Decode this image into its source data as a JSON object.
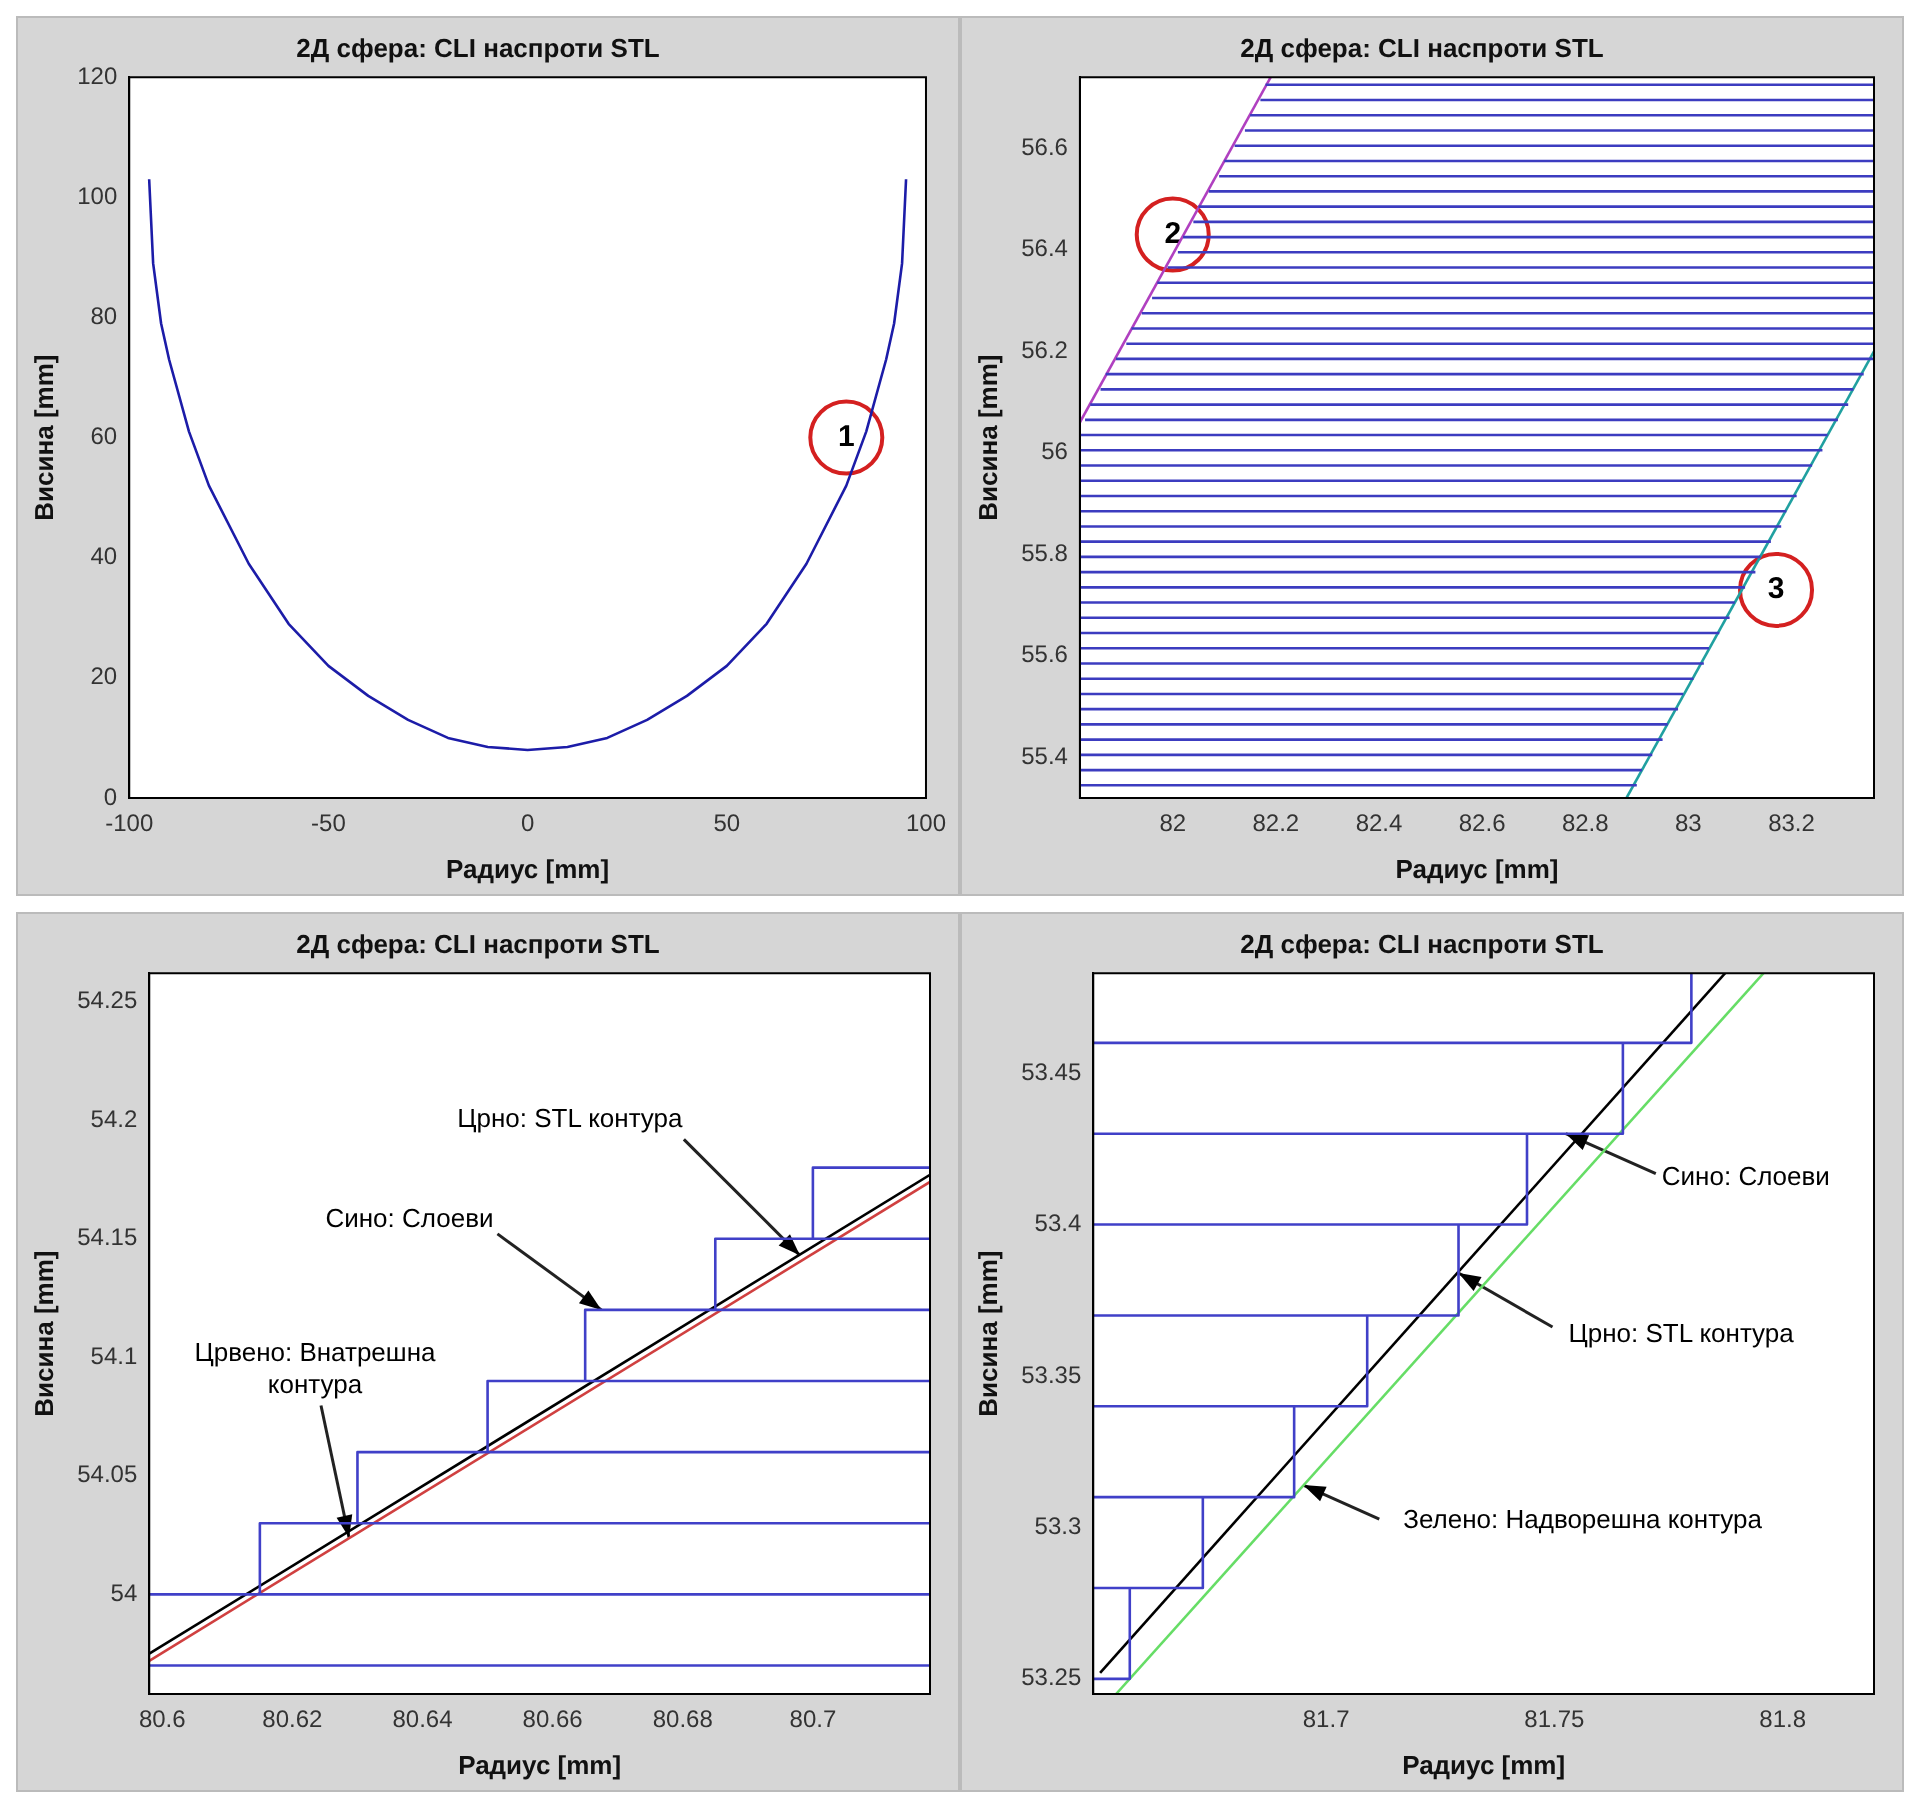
{
  "chart_data": [
    {
      "type": "line",
      "title": "2Д сфера: CLI наспроти STL",
      "xlabel": "Радиус [mm]",
      "ylabel": "Висина [mm]",
      "marker": "none",
      "xlim": [
        -100,
        100
      ],
      "ylim": [
        0,
        120
      ],
      "xticks": [
        -100,
        -50,
        0,
        50,
        100
      ],
      "yticks": [
        0,
        20,
        40,
        60,
        80,
        100,
        120
      ],
      "series": [
        {
          "color": "#1c1ca8",
          "x": [
            -95,
            -94,
            -92,
            -90,
            -85,
            -80,
            -70,
            -60,
            -50,
            -40,
            -30,
            -20,
            -10,
            0,
            10,
            20,
            30,
            40,
            50,
            60,
            70,
            80,
            85,
            90,
            92,
            94,
            95
          ],
          "values": [
            103,
            89,
            79,
            73,
            61,
            52,
            39,
            29,
            22,
            17,
            13,
            10,
            8.5,
            8,
            8.5,
            10,
            13,
            17,
            22,
            29,
            39,
            52,
            61,
            73,
            79,
            89,
            103
          ]
        }
      ],
      "annotations": [
        {
          "text": "1",
          "x": 80,
          "y": 60
        }
      ]
    },
    {
      "type": "line",
      "title": "2Д сфера: CLI наспроти STL",
      "xlabel": "Радиус [mm]",
      "ylabel": "Висина [mm]",
      "marker": "none",
      "xlim": [
        81.82,
        83.36
      ],
      "ylim": [
        55.32,
        56.74
      ],
      "xticks": [
        82,
        82.2,
        82.4,
        82.6,
        82.8,
        83,
        83.2
      ],
      "yticks": [
        55.4,
        55.6,
        55.8,
        56,
        56.2,
        56.4,
        56.6
      ],
      "series": [
        {
          "color": "#3c3cc0",
          "x": [
            81.82,
            82.9
          ],
          "values": [
            55.345,
            55.345
          ]
        },
        {
          "color": "#3c3cc0",
          "x": [
            81.82,
            82.91
          ],
          "values": [
            55.375,
            55.375
          ]
        },
        {
          "color": "#3c3cc0",
          "x": [
            81.82,
            82.93
          ],
          "values": [
            55.405,
            55.405
          ]
        },
        {
          "color": "#3c3cc0",
          "x": [
            81.82,
            82.95
          ],
          "values": [
            55.435,
            55.435
          ]
        },
        {
          "color": "#3c3cc0",
          "x": [
            81.82,
            82.96
          ],
          "values": [
            55.465,
            55.465
          ]
        },
        {
          "color": "#3c3cc0",
          "x": [
            81.82,
            82.98
          ],
          "values": [
            55.495,
            55.495
          ]
        },
        {
          "color": "#3c3cc0",
          "x": [
            81.82,
            82.99
          ],
          "values": [
            55.525,
            55.525
          ]
        },
        {
          "color": "#3c3cc0",
          "x": [
            81.82,
            83.01
          ],
          "values": [
            55.555,
            55.555
          ]
        },
        {
          "color": "#3c3cc0",
          "x": [
            81.82,
            83.03
          ],
          "values": [
            55.585,
            55.585
          ]
        },
        {
          "color": "#3c3cc0",
          "x": [
            81.82,
            83.04
          ],
          "values": [
            55.615,
            55.615
          ]
        },
        {
          "color": "#3c3cc0",
          "x": [
            81.82,
            83.06
          ],
          "values": [
            55.645,
            55.645
          ]
        },
        {
          "color": "#3c3cc0",
          "x": [
            81.82,
            83.08
          ],
          "values": [
            55.675,
            55.675
          ]
        },
        {
          "color": "#3c3cc0",
          "x": [
            81.82,
            83.09
          ],
          "values": [
            55.705,
            55.705
          ]
        },
        {
          "color": "#3c3cc0",
          "x": [
            81.82,
            83.11
          ],
          "values": [
            55.735,
            55.735
          ]
        },
        {
          "color": "#3c3cc0",
          "x": [
            81.82,
            83.13
          ],
          "values": [
            55.765,
            55.765
          ]
        },
        {
          "color": "#3c3cc0",
          "x": [
            81.82,
            83.14
          ],
          "values": [
            55.795,
            55.795
          ]
        },
        {
          "color": "#3c3cc0",
          "x": [
            81.82,
            83.16
          ],
          "values": [
            55.825,
            55.825
          ]
        },
        {
          "color": "#3c3cc0",
          "x": [
            81.82,
            83.18
          ],
          "values": [
            55.855,
            55.855
          ]
        },
        {
          "color": "#3c3cc0",
          "x": [
            81.82,
            83.19
          ],
          "values": [
            55.885,
            55.885
          ]
        },
        {
          "color": "#3c3cc0",
          "x": [
            81.82,
            83.21
          ],
          "values": [
            55.915,
            55.915
          ]
        },
        {
          "color": "#3c3cc0",
          "x": [
            81.82,
            83.22
          ],
          "values": [
            55.945,
            55.945
          ]
        },
        {
          "color": "#3c3cc0",
          "x": [
            81.82,
            83.24
          ],
          "values": [
            55.975,
            55.975
          ]
        },
        {
          "color": "#3c3cc0",
          "x": [
            81.82,
            83.26
          ],
          "values": [
            56.005,
            56.005
          ]
        },
        {
          "color": "#3c3cc0",
          "x": [
            81.82,
            83.27
          ],
          "values": [
            56.035,
            56.035
          ]
        },
        {
          "color": "#3c3cc0",
          "x": [
            81.83,
            83.29
          ],
          "values": [
            56.065,
            56.065
          ]
        },
        {
          "color": "#3c3cc0",
          "x": [
            81.84,
            83.31
          ],
          "values": [
            56.095,
            56.095
          ]
        },
        {
          "color": "#3c3cc0",
          "x": [
            81.86,
            83.32
          ],
          "values": [
            56.125,
            56.125
          ]
        },
        {
          "color": "#3c3cc0",
          "x": [
            81.87,
            83.34
          ],
          "values": [
            56.155,
            56.155
          ]
        },
        {
          "color": "#3c3cc0",
          "x": [
            81.89,
            83.36
          ],
          "values": [
            56.185,
            56.185
          ]
        },
        {
          "color": "#3c3cc0",
          "x": [
            81.91,
            83.36
          ],
          "values": [
            56.215,
            56.215
          ]
        },
        {
          "color": "#3c3cc0",
          "x": [
            81.92,
            83.36
          ],
          "values": [
            56.245,
            56.245
          ]
        },
        {
          "color": "#3c3cc0",
          "x": [
            81.94,
            83.36
          ],
          "values": [
            56.275,
            56.275
          ]
        },
        {
          "color": "#3c3cc0",
          "x": [
            81.96,
            83.36
          ],
          "values": [
            56.305,
            56.305
          ]
        },
        {
          "color": "#3c3cc0",
          "x": [
            81.97,
            83.36
          ],
          "values": [
            56.335,
            56.335
          ]
        },
        {
          "color": "#3c3cc0",
          "x": [
            81.99,
            83.36
          ],
          "values": [
            56.365,
            56.365
          ]
        },
        {
          "color": "#3c3cc0",
          "x": [
            82.01,
            83.36
          ],
          "values": [
            56.395,
            56.395
          ]
        },
        {
          "color": "#3c3cc0",
          "x": [
            82.02,
            83.36
          ],
          "values": [
            56.425,
            56.425
          ]
        },
        {
          "color": "#3c3cc0",
          "x": [
            82.04,
            83.36
          ],
          "values": [
            56.455,
            56.455
          ]
        },
        {
          "color": "#3c3cc0",
          "x": [
            82.05,
            83.36
          ],
          "values": [
            56.485,
            56.485
          ]
        },
        {
          "color": "#3c3cc0",
          "x": [
            82.07,
            83.36
          ],
          "values": [
            56.515,
            56.515
          ]
        },
        {
          "color": "#3c3cc0",
          "x": [
            82.09,
            83.36
          ],
          "values": [
            56.545,
            56.545
          ]
        },
        {
          "color": "#3c3cc0",
          "x": [
            82.1,
            83.36
          ],
          "values": [
            56.575,
            56.575
          ]
        },
        {
          "color": "#3c3cc0",
          "x": [
            82.12,
            83.36
          ],
          "values": [
            56.605,
            56.605
          ]
        },
        {
          "color": "#3c3cc0",
          "x": [
            82.14,
            83.36
          ],
          "values": [
            56.635,
            56.635
          ]
        },
        {
          "color": "#3c3cc0",
          "x": [
            82.15,
            83.36
          ],
          "values": [
            56.665,
            56.665
          ]
        },
        {
          "color": "#3c3cc0",
          "x": [
            82.17,
            83.36
          ],
          "values": [
            56.695,
            56.695
          ]
        },
        {
          "color": "#3c3cc0",
          "x": [
            82.18,
            83.36
          ],
          "values": [
            56.725,
            56.725
          ]
        },
        {
          "color": "#b040c0",
          "x": [
            81.82,
            82.19
          ],
          "values": [
            56.06,
            56.74
          ]
        },
        {
          "color": "#20a0a0",
          "x": [
            82.88,
            83.36
          ],
          "values": [
            55.32,
            56.2
          ]
        }
      ],
      "annotations": [
        {
          "text": "2",
          "x": 82.0,
          "y": 56.43
        },
        {
          "text": "3",
          "x": 83.17,
          "y": 55.73
        }
      ]
    },
    {
      "type": "line",
      "title": "2Д сфера: CLI наспроти STL",
      "xlabel": "Радиус [mm]",
      "ylabel": "Висина [mm]",
      "marker": "none",
      "xlim": [
        80.598,
        80.718
      ],
      "ylim": [
        53.958,
        54.262
      ],
      "xticks": [
        80.6,
        80.62,
        80.64,
        80.66,
        80.68,
        80.7
      ],
      "yticks": [
        54,
        54.05,
        54.1,
        54.15,
        54.2,
        54.25
      ],
      "series": [
        {
          "color": "#4040c8",
          "x": [
            80.598,
            80.718
          ],
          "values": [
            53.97,
            53.97
          ]
        },
        {
          "color": "#4040c8",
          "x": [
            80.598,
            80.718
          ],
          "values": [
            54.0,
            54.0
          ]
        },
        {
          "color": "#4040c8",
          "x": [
            80.615,
            80.615,
            80.718
          ],
          "values": [
            54.0,
            54.03,
            54.03
          ]
        },
        {
          "color": "#4040c8",
          "x": [
            80.63,
            80.63,
            80.718
          ],
          "values": [
            54.03,
            54.06,
            54.06
          ]
        },
        {
          "color": "#4040c8",
          "x": [
            80.65,
            80.65,
            80.718
          ],
          "values": [
            54.06,
            54.09,
            54.09
          ]
        },
        {
          "color": "#4040c8",
          "x": [
            80.665,
            80.665,
            80.718
          ],
          "values": [
            54.09,
            54.12,
            54.12
          ]
        },
        {
          "color": "#4040c8",
          "x": [
            80.685,
            80.685,
            80.718
          ],
          "values": [
            54.12,
            54.15,
            54.15
          ]
        },
        {
          "color": "#4040c8",
          "x": [
            80.7,
            80.7,
            80.718
          ],
          "values": [
            54.15,
            54.18,
            54.18
          ]
        },
        {
          "color": "#d04040",
          "x": [
            80.598,
            80.718
          ],
          "values": [
            53.972,
            54.174
          ]
        },
        {
          "color": "#000000",
          "x": [
            80.598,
            80.718
          ],
          "values": [
            53.975,
            54.177
          ]
        }
      ],
      "annotations": [
        {
          "text": "Црно: STL контура",
          "x": 80.698,
          "y": 54.143
        },
        {
          "text": "Сино: Слоеви",
          "x": 80.6675,
          "y": 54.12
        },
        {
          "text": "Црвено: Внатрешна контура",
          "x": 80.6287,
          "y": 54.024
        }
      ]
    },
    {
      "type": "line",
      "title": "2Д сфера: CLI наспроти STL",
      "xlabel": "Радиус [mm]",
      "ylabel": "Висина [mm]",
      "marker": "none",
      "xlim": [
        81.649,
        81.82
      ],
      "ylim": [
        53.245,
        53.483
      ],
      "xticks": [
        81.7,
        81.75,
        81.8
      ],
      "yticks": [
        53.25,
        53.3,
        53.35,
        53.4,
        53.45
      ],
      "series": [
        {
          "color": "#4040c8",
          "x": [
            81.649,
            81.657,
            81.657
          ],
          "values": [
            53.25,
            53.25,
            53.28
          ]
        },
        {
          "color": "#4040c8",
          "x": [
            81.649,
            81.673,
            81.673
          ],
          "values": [
            53.28,
            53.28,
            53.31
          ]
        },
        {
          "color": "#4040c8",
          "x": [
            81.649,
            81.693,
            81.693
          ],
          "values": [
            53.31,
            53.31,
            53.34
          ]
        },
        {
          "color": "#4040c8",
          "x": [
            81.649,
            81.709,
            81.709
          ],
          "values": [
            53.34,
            53.34,
            53.37
          ]
        },
        {
          "color": "#4040c8",
          "x": [
            81.649,
            81.729,
            81.729
          ],
          "values": [
            53.37,
            53.37,
            53.4
          ]
        },
        {
          "color": "#4040c8",
          "x": [
            81.649,
            81.744,
            81.744
          ],
          "values": [
            53.4,
            53.4,
            53.43
          ]
        },
        {
          "color": "#4040c8",
          "x": [
            81.649,
            81.765,
            81.765
          ],
          "values": [
            53.43,
            53.43,
            53.46
          ]
        },
        {
          "color": "#4040c8",
          "x": [
            81.649,
            81.78,
            81.78
          ],
          "values": [
            53.46,
            53.46,
            53.483
          ]
        },
        {
          "color": "#000000",
          "x": [
            81.6505,
            81.7874
          ],
          "values": [
            53.252,
            53.483
          ]
        },
        {
          "color": "#66dd66",
          "x": [
            81.654,
            81.7958
          ],
          "values": [
            53.245,
            53.483
          ]
        }
      ],
      "annotations": [
        {
          "text": "Сино: Слоеви",
          "x": 81.7525,
          "y": 53.43
        },
        {
          "text": "Црно: STL контура",
          "x": 81.729,
          "y": 53.384
        },
        {
          "text": "Зелено: Надворешна контура",
          "x": 81.695,
          "y": 53.314
        }
      ]
    }
  ]
}
